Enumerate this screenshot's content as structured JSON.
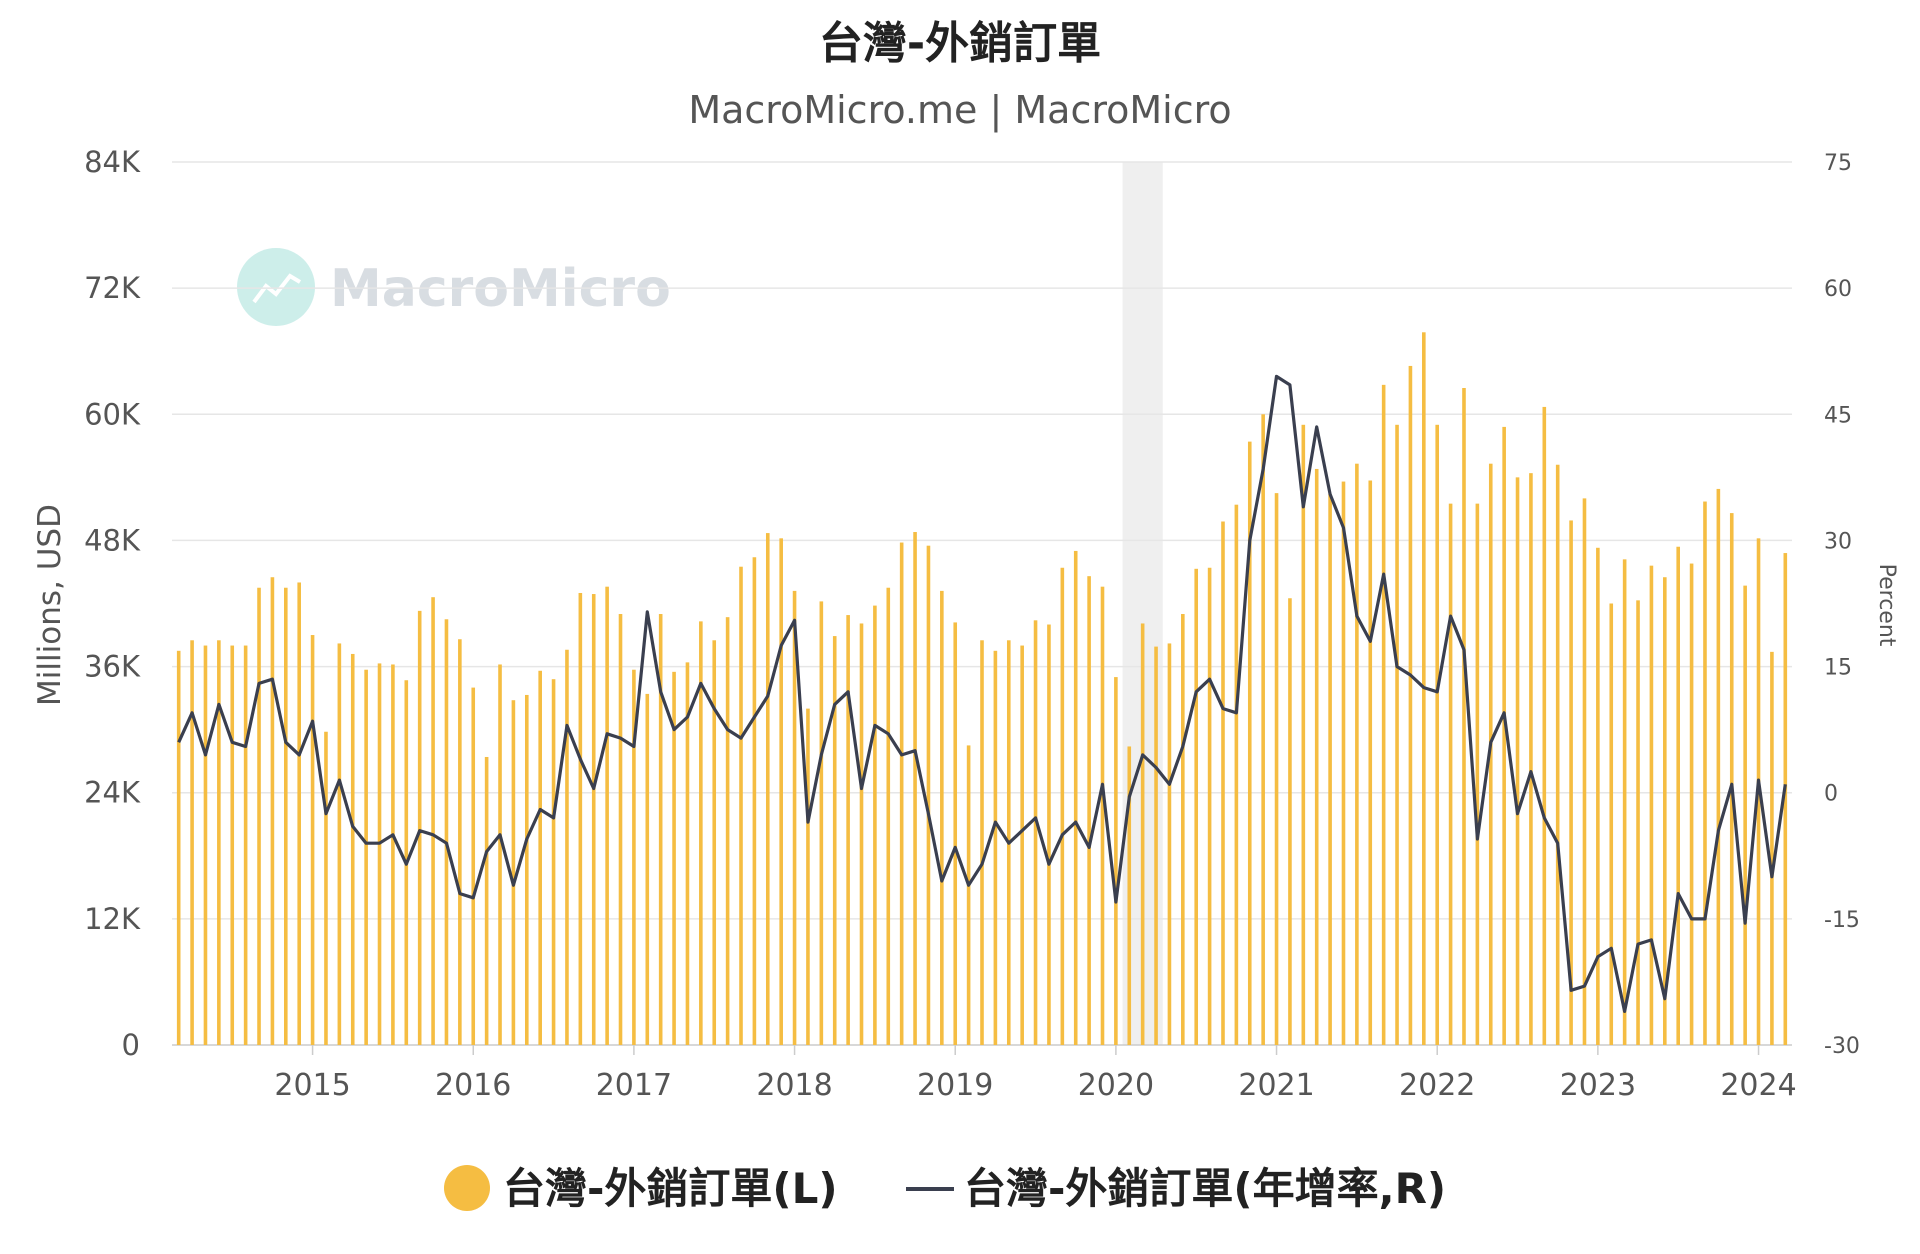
{
  "chart_data": {
    "type": "bar",
    "title": "台灣-外銷訂單",
    "subtitle": "MacroMicro.me | MacroMicro",
    "watermark": "MacroMicro",
    "ylabel_left": "Millions, USD",
    "ylabel_right": "Percent",
    "ylim_left": [
      0,
      84000
    ],
    "ylim_right": [
      -30,
      75
    ],
    "yticks_left": [
      {
        "v": 0,
        "label": "0"
      },
      {
        "v": 12000,
        "label": "12K"
      },
      {
        "v": 24000,
        "label": "24K"
      },
      {
        "v": 36000,
        "label": "36K"
      },
      {
        "v": 48000,
        "label": "48K"
      },
      {
        "v": 60000,
        "label": "60K"
      },
      {
        "v": 72000,
        "label": "72K"
      },
      {
        "v": 84000,
        "label": "84K"
      }
    ],
    "yticks_right": [
      {
        "v": -30,
        "label": "-30"
      },
      {
        "v": -15,
        "label": "-15"
      },
      {
        "v": 0,
        "label": "0"
      },
      {
        "v": 15,
        "label": "15"
      },
      {
        "v": 30,
        "label": "30"
      },
      {
        "v": 45,
        "label": "45"
      },
      {
        "v": 60,
        "label": "60"
      },
      {
        "v": 75,
        "label": "75"
      }
    ],
    "x_start": "2014-03",
    "xticks": [
      {
        "x": "2015-01",
        "label": "2015"
      },
      {
        "x": "2016-01",
        "label": "2016"
      },
      {
        "x": "2017-01",
        "label": "2017"
      },
      {
        "x": "2018-01",
        "label": "2018"
      },
      {
        "x": "2019-01",
        "label": "2019"
      },
      {
        "x": "2020-01",
        "label": "2020"
      },
      {
        "x": "2021-01",
        "label": "2021"
      },
      {
        "x": "2022-01",
        "label": "2022"
      },
      {
        "x": "2023-01",
        "label": "2023"
      },
      {
        "x": "2024-01",
        "label": "2024"
      }
    ],
    "shaded_range": [
      "2020-02",
      "2020-04"
    ],
    "colors": {
      "bar": "#f5bd42",
      "line": "#3a3f4f",
      "grid": "#e6e6e6",
      "shade": "#efefef"
    },
    "grid": true,
    "legend_position": "bottom",
    "series": [
      {
        "name": "台灣-外銷訂單(L)",
        "type": "bar",
        "axis": "left",
        "values": [
          37500,
          38500,
          38000,
          38500,
          38000,
          38000,
          43500,
          44500,
          43500,
          44000,
          39000,
          29800,
          38200,
          37200,
          35700,
          36300,
          36200,
          34700,
          41300,
          42600,
          40500,
          38600,
          34000,
          27400,
          36200,
          32800,
          33300,
          35600,
          34800,
          37600,
          43000,
          42900,
          43600,
          41000,
          35700,
          33400,
          41000,
          35500,
          36400,
          40300,
          38500,
          40700,
          45500,
          46400,
          48700,
          48200,
          43200,
          32000,
          42200,
          38900,
          40900,
          40100,
          41800,
          43500,
          47800,
          48800,
          47500,
          43200,
          40200,
          28500,
          38500,
          37500,
          38500,
          38000,
          40400,
          40000,
          45400,
          47000,
          44600,
          43600,
          35000,
          28400,
          40100,
          37900,
          38200,
          41000,
          45300,
          45400,
          49800,
          51400,
          57400,
          60000,
          52500,
          42500,
          59000,
          54800,
          52400,
          53600,
          55300,
          53700,
          62800,
          59000,
          64600,
          67800,
          59000,
          51500,
          62500,
          51500,
          55300,
          58800,
          54000,
          54400,
          60700,
          55200,
          49900,
          52000,
          47300,
          42000,
          46200,
          42300,
          45600,
          44500,
          47400,
          45800,
          51700,
          52900,
          50600,
          43700,
          48200,
          37400,
          46800
        ]
      },
      {
        "name": "台灣-外銷訂單(年增率,R)",
        "type": "line",
        "axis": "right",
        "values": [
          6.0,
          9.5,
          4.5,
          10.5,
          6.0,
          5.5,
          13.0,
          13.5,
          6.0,
          4.5,
          8.5,
          -2.5,
          1.5,
          -4.0,
          -6.0,
          -6.0,
          -5.0,
          -8.5,
          -4.5,
          -5.0,
          -6.0,
          -12.0,
          -12.5,
          -7.0,
          -5.0,
          -11.0,
          -5.5,
          -2.0,
          -3.0,
          8.0,
          4.0,
          0.5,
          7.0,
          6.5,
          5.5,
          21.5,
          12.0,
          7.5,
          9.0,
          13.0,
          10.0,
          7.5,
          6.5,
          9.0,
          11.5,
          17.5,
          20.5,
          -3.5,
          4.5,
          10.5,
          12.0,
          0.5,
          8.0,
          7.0,
          4.5,
          5.0,
          -2.5,
          -10.5,
          -6.5,
          -11.0,
          -8.5,
          -3.5,
          -6.0,
          -4.5,
          -3.0,
          -8.5,
          -5.0,
          -3.5,
          -6.5,
          1.0,
          -13.0,
          -0.5,
          4.5,
          3.0,
          1.0,
          5.5,
          12.0,
          13.5,
          10.0,
          9.5,
          30.0,
          38.5,
          49.5,
          48.5,
          34.0,
          43.5,
          35.5,
          31.5,
          21.0,
          18.0,
          26.0,
          15.0,
          14.0,
          12.5,
          12.0,
          21.0,
          17.0,
          -5.5,
          6.0,
          9.5,
          -2.5,
          2.5,
          -3.0,
          -6.0,
          -23.5,
          -23.0,
          -19.5,
          -18.5,
          -26.0,
          -18.0,
          -17.5,
          -24.5,
          -12.0,
          -15.0,
          -15.0,
          -4.5,
          1.0,
          -15.5,
          1.5,
          -10.0,
          1.0
        ]
      }
    ]
  }
}
